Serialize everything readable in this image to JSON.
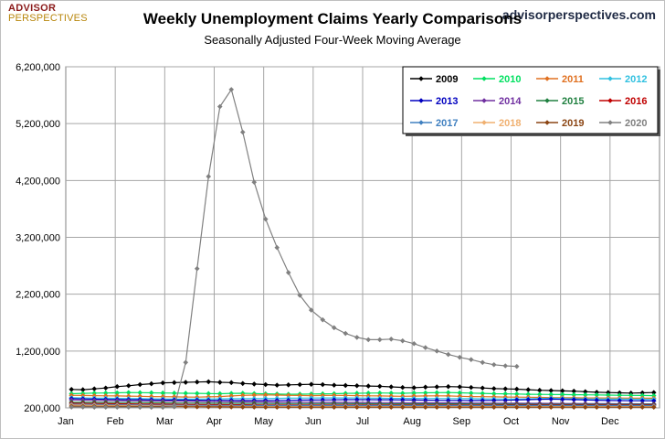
{
  "header": {
    "brand_top": "ADVISOR",
    "brand_bottom": "PERSPECTIVES",
    "site": "advisorperspectives.com"
  },
  "chart_data": {
    "type": "line",
    "title": "Weekly Unemployment Claims Yearly Comparisons",
    "subtitle": "Seasonally Adjusted Four-Week Moving Average",
    "xlabel": "",
    "ylabel": "",
    "x_tick_labels": [
      "Jan",
      "Feb",
      "Mar",
      "Apr",
      "May",
      "Jun",
      "Jul",
      "Aug",
      "Sep",
      "Oct",
      "Nov",
      "Dec"
    ],
    "x_unit": "week of year",
    "y_ticks": [
      200000,
      1200000,
      2200000,
      3200000,
      4200000,
      5200000,
      6200000
    ],
    "y_tick_labels": [
      "200,000",
      "1,200,000",
      "2,200,000",
      "3,200,000",
      "4,200,000",
      "5,200,000",
      "6,200,000"
    ],
    "ylim": [
      200000,
      6200000
    ],
    "grid": true,
    "legend_position": "top-right",
    "series": [
      {
        "name": "2009",
        "color": "#000000",
        "values": [
          525000,
          520000,
          535000,
          550000,
          575000,
          590000,
          610000,
          625000,
          640000,
          645000,
          650000,
          655000,
          660000,
          650000,
          645000,
          630000,
          620000,
          610000,
          600000,
          605000,
          610000,
          615000,
          610000,
          600000,
          595000,
          590000,
          585000,
          580000,
          570000,
          560000,
          555000,
          565000,
          570000,
          575000,
          570000,
          560000,
          550000,
          540000,
          535000,
          530000,
          520000,
          510000,
          505000,
          500000,
          495000,
          485000,
          475000,
          470000,
          465000,
          460000,
          465000,
          470000
        ]
      },
      {
        "name": "2010",
        "color": "#00e060",
        "values": [
          450000,
          455000,
          460000,
          462000,
          465000,
          470000,
          468000,
          466000,
          462000,
          460000,
          458000,
          455000,
          452000,
          450000,
          455000,
          458000,
          452000,
          448000,
          445000,
          440000,
          442000,
          445000,
          448000,
          450000,
          455000,
          458000,
          460000,
          462000,
          460000,
          458000,
          462000,
          465000,
          468000,
          470000,
          465000,
          460000,
          455000,
          450000,
          448000,
          445000,
          440000,
          438000,
          436000,
          435000,
          432000,
          430000,
          428000,
          425000,
          422000,
          420000,
          418000,
          415000
        ]
      },
      {
        "name": "2011",
        "color": "#e07020",
        "values": [
          420000,
          418000,
          415000,
          412000,
          410000,
          408000,
          405000,
          400000,
          398000,
          395000,
          392000,
          390000,
          395000,
          400000,
          410000,
          420000,
          425000,
          428000,
          425000,
          420000,
          418000,
          415000,
          418000,
          420000,
          418000,
          415000,
          412000,
          410000,
          408000,
          405000,
          408000,
          410000,
          412000,
          410000,
          405000,
          400000,
          398000,
          395000,
          392000,
          390000,
          388000,
          385000,
          382000,
          380000,
          378000,
          376000,
          375000,
          374000,
          373000,
          372000,
          372000,
          371000
        ]
      },
      {
        "name": "2012",
        "color": "#30c0e0",
        "values": [
          378000,
          375000,
          372000,
          370000,
          368000,
          365000,
          362000,
          360000,
          358000,
          355000,
          355000,
          356000,
          358000,
          360000,
          362000,
          364000,
          365000,
          366000,
          368000,
          370000,
          372000,
          373000,
          375000,
          376000,
          375000,
          374000,
          372000,
          370000,
          368000,
          368000,
          367000,
          366000,
          365000,
          364000,
          363000,
          362000,
          360000,
          358000,
          356000,
          355000,
          360000,
          365000,
          370000,
          365000,
          360000,
          358000,
          356000,
          355000,
          354000,
          353000,
          352000,
          350000
        ]
      },
      {
        "name": "2013",
        "color": "#0000c0",
        "values": [
          362000,
          358000,
          355000,
          350000,
          348000,
          345000,
          344000,
          342000,
          340000,
          338000,
          336000,
          335000,
          334000,
          333000,
          332000,
          331000,
          330000,
          330000,
          332000,
          334000,
          336000,
          338000,
          340000,
          342000,
          344000,
          345000,
          344000,
          343000,
          342000,
          340000,
          338000,
          336000,
          334000,
          332000,
          330000,
          328000,
          330000,
          332000,
          334000,
          340000,
          345000,
          350000,
          355000,
          350000,
          345000,
          340000,
          335000,
          330000,
          328000,
          326000,
          325000,
          324000
        ]
      },
      {
        "name": "2014",
        "color": "#7030a0",
        "values": [
          340000,
          336000,
          332000,
          330000,
          328000,
          326000,
          324000,
          322000,
          320000,
          318000,
          316000,
          314000,
          312000,
          310000,
          308000,
          306000,
          305000,
          304000,
          303000,
          302000,
          301000,
          300000,
          299000,
          298000,
          297000,
          296000,
          295000,
          294000,
          293000,
          292000,
          291000,
          290000,
          289000,
          288000,
          287000,
          286000,
          285000,
          284000,
          283000,
          282000,
          281000,
          280000,
          279000,
          278000,
          277000,
          276000,
          275000,
          274000,
          273000,
          272000,
          271000,
          270000
        ]
      },
      {
        "name": "2015",
        "color": "#208040",
        "values": [
          300000,
          298000,
          296000,
          295000,
          294000,
          293000,
          292000,
          290000,
          288000,
          286000,
          284000,
          283000,
          282000,
          281000,
          280000,
          279000,
          278000,
          277000,
          276000,
          276000,
          276000,
          276000,
          276000,
          275000,
          275000,
          274000,
          273000,
          272000,
          271000,
          270000,
          270000,
          270000,
          270000,
          270000,
          270000,
          269000,
          268000,
          267000,
          266000,
          265000,
          264000,
          263000,
          262000,
          262000,
          262000,
          262000,
          262000,
          262000,
          262000,
          262000,
          262000,
          262000
        ]
      },
      {
        "name": "2016",
        "color": "#c00000",
        "values": [
          280000,
          278000,
          276000,
          274000,
          272000,
          270000,
          268000,
          266000,
          264000,
          262000,
          260000,
          258000,
          257000,
          256000,
          255000,
          254000,
          253000,
          252000,
          252000,
          252000,
          252000,
          252000,
          252000,
          252000,
          252000,
          252000,
          252000,
          252000,
          252000,
          252000,
          252000,
          252000,
          252000,
          252000,
          252000,
          252000,
          252000,
          252000,
          252000,
          252000,
          252000,
          252000,
          252000,
          252000,
          252000,
          252000,
          252000,
          252000,
          252000,
          252000,
          252000,
          252000
        ]
      },
      {
        "name": "2017",
        "color": "#4080c0",
        "values": [
          262000,
          260000,
          258000,
          256000,
          254000,
          252000,
          250000,
          248000,
          246000,
          245000,
          244000,
          243000,
          242000,
          241000,
          240000,
          240000,
          240000,
          240000,
          240000,
          240000,
          240000,
          240000,
          240000,
          240000,
          240000,
          240000,
          240000,
          240000,
          240000,
          240000,
          240000,
          240000,
          240000,
          240000,
          240000,
          240000,
          240000,
          240000,
          240000,
          240000,
          240000,
          240000,
          240000,
          240000,
          240000,
          240000,
          240000,
          240000,
          240000,
          240000,
          240000,
          240000
        ]
      },
      {
        "name": "2018",
        "color": "#f0b070",
        "values": [
          248000,
          246000,
          244000,
          242000,
          240000,
          238000,
          236000,
          234000,
          232000,
          230000,
          229000,
          228000,
          227000,
          226000,
          225000,
          224000,
          223000,
          222000,
          222000,
          222000,
          222000,
          222000,
          222000,
          222000,
          222000,
          222000,
          222000,
          222000,
          222000,
          222000,
          222000,
          222000,
          222000,
          222000,
          222000,
          222000,
          222000,
          222000,
          222000,
          222000,
          222000,
          222000,
          222000,
          222000,
          222000,
          222000,
          222000,
          222000,
          222000,
          222000,
          222000,
          222000
        ]
      },
      {
        "name": "2019",
        "color": "#8b4513",
        "values": [
          230000,
          229000,
          228000,
          227000,
          226000,
          225000,
          224000,
          223000,
          222000,
          221000,
          220000,
          219000,
          218000,
          217000,
          216000,
          215000,
          214000,
          213000,
          213000,
          213000,
          213000,
          213000,
          213000,
          213000,
          213000,
          213000,
          213000,
          213000,
          213000,
          213000,
          213000,
          213000,
          213000,
          213000,
          213000,
          213000,
          213000,
          213000,
          213000,
          213000,
          213000,
          213000,
          213000,
          213000,
          213000,
          213000,
          213000,
          213000,
          213000,
          213000,
          213000,
          213000
        ]
      },
      {
        "name": "2020",
        "color": "#808080",
        "values": [
          214000,
          214000,
          213000,
          213000,
          212000,
          212000,
          211000,
          211000,
          210000,
          220000,
          1000000,
          2650000,
          4270000,
          5500000,
          5800000,
          5050000,
          4170000,
          3520000,
          3020000,
          2580000,
          2180000,
          1920000,
          1750000,
          1610000,
          1510000,
          1440000,
          1400000,
          1400000,
          1410000,
          1380000,
          1330000,
          1260000,
          1200000,
          1140000,
          1090000,
          1050000,
          1000000,
          960000,
          940000,
          930000
        ]
      }
    ]
  }
}
